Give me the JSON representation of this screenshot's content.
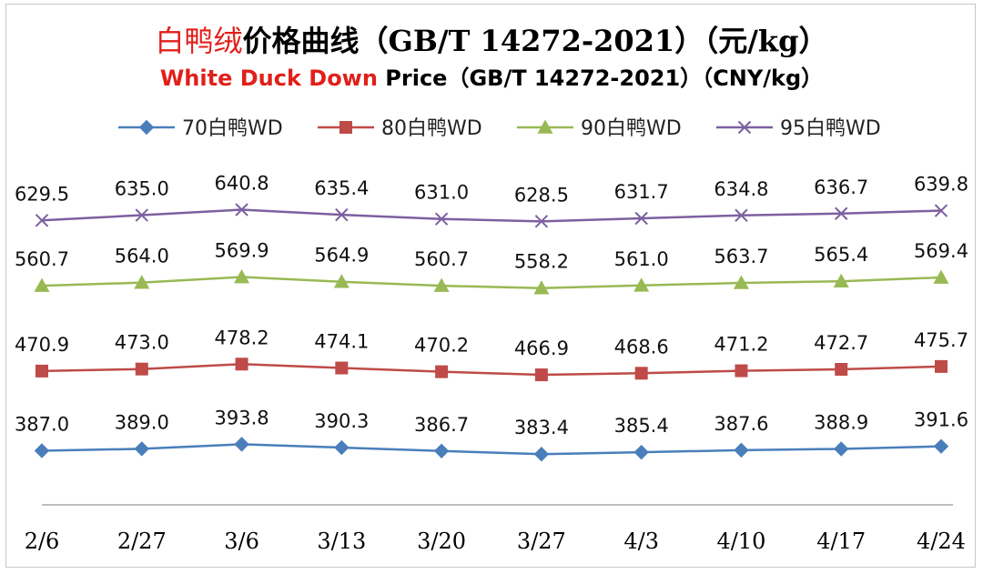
{
  "title": {
    "cn_red": "白鸭绒",
    "cn_rest": "价格曲线（GB/T 14272-2021）（元/kg）",
    "en_red": "White Duck Down",
    "en_rest": " Price（GB/T 14272-2021）（CNY/kg）"
  },
  "chart_data": {
    "type": "line",
    "categories": [
      "2/6",
      "2/27",
      "3/6",
      "3/13",
      "3/20",
      "3/27",
      "4/3",
      "4/10",
      "4/17",
      "4/24"
    ],
    "ylim": [
      330,
      670
    ],
    "grid": false,
    "legend_position": "top",
    "series": [
      {
        "name": "70白鸭WD",
        "color": "#4a7ebb",
        "marker": "diamond",
        "values": [
          387.0,
          389.0,
          393.8,
          390.3,
          386.7,
          383.4,
          385.4,
          387.6,
          388.9,
          391.6
        ],
        "labels": [
          "387.0",
          "389.0",
          "393.8",
          "390.3",
          "386.7",
          "383.4",
          "385.4",
          "387.6",
          "388.9",
          "391.6"
        ]
      },
      {
        "name": "80白鸭WD",
        "color": "#be4b48",
        "marker": "square",
        "values": [
          470.9,
          473.0,
          478.2,
          474.1,
          470.2,
          466.9,
          468.6,
          471.2,
          472.7,
          475.7
        ],
        "labels": [
          "470.9",
          "473.0",
          "478.2",
          "474.1",
          "470.2",
          "466.9",
          "468.6",
          "471.2",
          "472.7",
          "475.7"
        ]
      },
      {
        "name": "90白鸭WD",
        "color": "#98b954",
        "marker": "triangle",
        "values": [
          560.7,
          564.0,
          569.9,
          564.9,
          560.7,
          558.2,
          561.0,
          563.7,
          565.4,
          569.4
        ],
        "labels": [
          "560.7",
          "564.0",
          "569.9",
          "564.9",
          "560.7",
          "558.2",
          "561.0",
          "563.7",
          "565.4",
          "569.4"
        ]
      },
      {
        "name": "95白鸭WD",
        "color": "#7d60a0",
        "marker": "x",
        "values": [
          629.5,
          635.0,
          640.8,
          635.4,
          631.0,
          628.5,
          631.7,
          634.8,
          636.7,
          639.8
        ],
        "labels": [
          "629.5",
          "635.0",
          "640.8",
          "635.4",
          "631.0",
          "628.5",
          "631.7",
          "634.8",
          "636.7",
          "639.8"
        ]
      }
    ]
  }
}
